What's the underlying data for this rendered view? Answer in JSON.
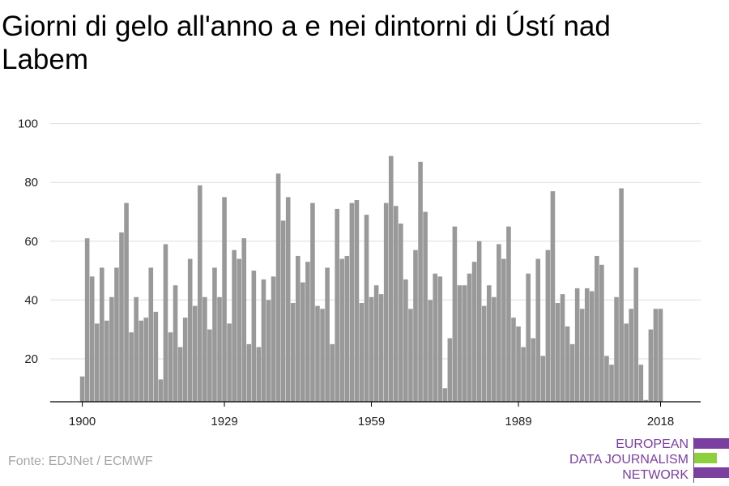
{
  "title": "Giorni di gelo all'anno a e nei dintorni di Ústí nad Labem",
  "source": "Fonte: EDJNet / ECMWF",
  "logo": {
    "lines": [
      "EUROPEAN",
      "DATA JOURNALISM",
      "NETWORK"
    ],
    "colors": {
      "purple": "#7b3fa0",
      "green": "#8dd03b"
    }
  },
  "colors": {
    "bar": "#999999",
    "grid": "#dddddd",
    "axis": "#000000"
  },
  "chart_data": {
    "type": "bar",
    "title": "Giorni di gelo all'anno a e nei dintorni di Ústí nad Labem",
    "xlabel": "",
    "ylabel": "",
    "ylim": [
      5,
      100
    ],
    "yticks": [
      20,
      40,
      60,
      80,
      100
    ],
    "xticks": [
      1900,
      1929,
      1959,
      1989,
      2018
    ],
    "grid": true,
    "x_start": 1900,
    "values": [
      14,
      61,
      48,
      32,
      51,
      33,
      41,
      51,
      63,
      73,
      29,
      41,
      33,
      34,
      51,
      36,
      13,
      59,
      29,
      45,
      24,
      34,
      54,
      38,
      79,
      41,
      30,
      51,
      41,
      75,
      32,
      57,
      54,
      61,
      25,
      50,
      24,
      47,
      40,
      48,
      83,
      67,
      75,
      39,
      55,
      46,
      53,
      73,
      38,
      37,
      51,
      25,
      71,
      54,
      55,
      73,
      74,
      39,
      69,
      41,
      45,
      42,
      73,
      89,
      72,
      66,
      47,
      37,
      57,
      87,
      70,
      40,
      49,
      48,
      10,
      27,
      65,
      45,
      45,
      49,
      53,
      60,
      38,
      45,
      41,
      59,
      54,
      65,
      34,
      31,
      24,
      49,
      27,
      54,
      21,
      57,
      77,
      39,
      42,
      31,
      25,
      44,
      37,
      44,
      43,
      55,
      52,
      21,
      18,
      41,
      78,
      32,
      37,
      51,
      18,
      6,
      30,
      37,
      37
    ]
  }
}
